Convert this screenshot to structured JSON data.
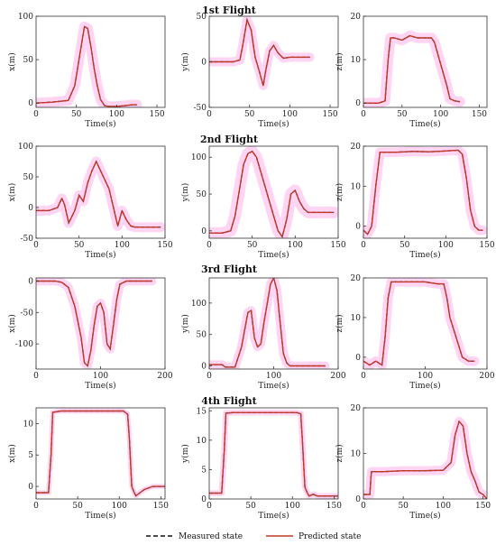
{
  "flight_titles": [
    "1st Flight",
    "2nd Flight",
    "3rd Flight",
    "4th Flight"
  ],
  "legend": {
    "measured": "Measured state",
    "predicted": "Predicted state"
  },
  "colors": {
    "measured": "#111111",
    "predicted": "#c0392b",
    "band": "#ff88dd",
    "axes": "#333333"
  },
  "chart_data": [
    {
      "type": "line",
      "title": "1st Flight",
      "xlabel": "Time(s)",
      "ylabel": "x(m)",
      "xlim": [
        0,
        160
      ],
      "ylim": [
        -5,
        100
      ],
      "xticks": [
        0,
        50,
        100,
        150
      ],
      "yticks": [
        0,
        50,
        100
      ],
      "band": 6,
      "series": [
        {
          "name": "Measured state",
          "x": [
            0,
            20,
            40,
            48,
            55,
            60,
            64,
            68,
            72,
            76,
            80,
            85,
            90,
            100,
            110,
            120,
            125
          ],
          "y": [
            0,
            1,
            3,
            20,
            60,
            88,
            86,
            65,
            40,
            20,
            4,
            -3,
            -4,
            -4,
            -3,
            -2,
            -2
          ]
        }
      ]
    },
    {
      "type": "line",
      "xlabel": "Time(s)",
      "ylabel": "y(m)",
      "xlim": [
        0,
        160
      ],
      "ylim": [
        -50,
        50
      ],
      "xticks": [
        0,
        50,
        100,
        150
      ],
      "yticks": [
        -50,
        0,
        50
      ],
      "band": 5,
      "series": [
        {
          "name": "Measured state",
          "x": [
            0,
            20,
            30,
            38,
            42,
            47,
            52,
            57,
            62,
            67,
            70,
            75,
            80,
            85,
            92,
            100,
            110,
            125
          ],
          "y": [
            0,
            0,
            0,
            2,
            20,
            46,
            35,
            5,
            -10,
            -26,
            -10,
            12,
            18,
            10,
            4,
            5,
            5,
            5
          ]
        }
      ]
    },
    {
      "type": "line",
      "xlabel": "Time(s)",
      "ylabel": "z(m)",
      "xlim": [
        0,
        160
      ],
      "ylim": [
        -1,
        20
      ],
      "xticks": [
        0,
        50,
        100,
        150
      ],
      "yticks": [
        0,
        10,
        20
      ],
      "band": 1.2,
      "series": [
        {
          "name": "Measured state",
          "x": [
            0,
            10,
            20,
            28,
            32,
            35,
            40,
            50,
            60,
            70,
            80,
            88,
            92,
            100,
            108,
            112,
            118,
            125
          ],
          "y": [
            0,
            0,
            0,
            0.5,
            10,
            15,
            15,
            14.5,
            15.5,
            15,
            15,
            15,
            14,
            9,
            4,
            1,
            0.5,
            0.3
          ]
        }
      ]
    },
    {
      "type": "line",
      "title": "2nd Flight",
      "xlabel": "Time(s)",
      "ylabel": "x(m)",
      "xlim": [
        0,
        150
      ],
      "ylim": [
        -50,
        100
      ],
      "xticks": [
        0,
        50,
        100,
        150
      ],
      "yticks": [
        -50,
        0,
        50,
        100
      ],
      "band": 8,
      "series": [
        {
          "name": "Measured state",
          "x": [
            0,
            15,
            25,
            30,
            33,
            38,
            45,
            50,
            55,
            60,
            65,
            70,
            75,
            80,
            85,
            90,
            95,
            100,
            105,
            110,
            115,
            120,
            130,
            145
          ],
          "y": [
            -5,
            -5,
            0,
            15,
            5,
            -25,
            -5,
            20,
            10,
            40,
            60,
            75,
            60,
            45,
            30,
            0,
            -30,
            -5,
            -20,
            -30,
            -32,
            -32,
            -32,
            -32
          ]
        }
      ]
    },
    {
      "type": "line",
      "xlabel": "Time(s)",
      "ylabel": "y(m)",
      "xlim": [
        0,
        150
      ],
      "ylim": [
        -10,
        115
      ],
      "xticks": [
        0,
        50,
        100,
        150
      ],
      "yticks": [
        0,
        50,
        100
      ],
      "band": 8,
      "series": [
        {
          "name": "Measured state",
          "x": [
            0,
            15,
            25,
            30,
            35,
            40,
            45,
            50,
            55,
            60,
            65,
            70,
            75,
            80,
            85,
            90,
            95,
            100,
            105,
            110,
            115,
            130,
            145
          ],
          "y": [
            -3,
            -3,
            0,
            20,
            55,
            90,
            105,
            108,
            100,
            80,
            60,
            40,
            20,
            0,
            -8,
            15,
            50,
            55,
            40,
            30,
            25,
            25,
            25
          ]
        }
      ]
    },
    {
      "type": "line",
      "xlabel": "Time(s)",
      "ylabel": "z(m)",
      "xlim": [
        0,
        150
      ],
      "ylim": [
        -3,
        20
      ],
      "xticks": [
        0,
        50,
        100,
        150
      ],
      "yticks": [
        0,
        10,
        20
      ],
      "band": 1.2,
      "series": [
        {
          "name": "Measured state",
          "x": [
            0,
            5,
            10,
            15,
            20,
            25,
            40,
            60,
            80,
            100,
            115,
            120,
            125,
            130,
            135,
            140,
            145
          ],
          "y": [
            -1,
            -2,
            0,
            10,
            18.5,
            18.5,
            18.5,
            18.7,
            18.6,
            18.8,
            19,
            18,
            12,
            4,
            0,
            -1,
            -1
          ]
        }
      ]
    },
    {
      "type": "line",
      "title": "3rd Flight",
      "xlabel": "Time(s)",
      "ylabel": "x(m)",
      "xlim": [
        0,
        200
      ],
      "ylim": [
        -140,
        5
      ],
      "xticks": [
        0,
        100,
        200
      ],
      "yticks": [
        -100,
        -50,
        0
      ],
      "band": 7,
      "series": [
        {
          "name": "Measured state",
          "x": [
            0,
            20,
            30,
            40,
            50,
            60,
            70,
            75,
            80,
            85,
            90,
            95,
            100,
            105,
            110,
            115,
            120,
            125,
            130,
            140,
            160,
            180
          ],
          "y": [
            0,
            0,
            0,
            -2,
            -10,
            -40,
            -90,
            -130,
            -135,
            -110,
            -70,
            -40,
            -35,
            -50,
            -100,
            -108,
            -70,
            -30,
            -5,
            0,
            0,
            0
          ]
        }
      ]
    },
    {
      "type": "line",
      "xlabel": "Time(s)",
      "ylabel": "y(m)",
      "xlim": [
        0,
        200
      ],
      "ylim": [
        -5,
        140
      ],
      "xticks": [
        0,
        100,
        200
      ],
      "yticks": [
        0,
        50,
        100
      ],
      "band": 7,
      "series": [
        {
          "name": "Measured state",
          "x": [
            0,
            20,
            25,
            40,
            50,
            60,
            65,
            70,
            75,
            80,
            85,
            90,
            95,
            100,
            105,
            110,
            115,
            120,
            125,
            140,
            160,
            180
          ],
          "y": [
            2,
            2,
            -2,
            -2,
            30,
            85,
            88,
            45,
            30,
            35,
            70,
            100,
            130,
            140,
            120,
            70,
            20,
            5,
            0,
            0,
            0,
            0
          ]
        }
      ]
    },
    {
      "type": "line",
      "xlabel": "Time(s)",
      "ylabel": "z(m)",
      "xlim": [
        0,
        200
      ],
      "ylim": [
        -3,
        20
      ],
      "xticks": [
        0,
        100,
        200
      ],
      "yticks": [
        0,
        10,
        20
      ],
      "band": 1.2,
      "series": [
        {
          "name": "Measured state",
          "x": [
            0,
            10,
            20,
            30,
            35,
            40,
            45,
            50,
            60,
            80,
            100,
            120,
            130,
            135,
            140,
            150,
            160,
            170,
            180
          ],
          "y": [
            -1,
            -2,
            -1,
            -2,
            5,
            15,
            19,
            19,
            19,
            19,
            19,
            18.5,
            18.5,
            15,
            10,
            5,
            0,
            -1,
            -1
          ]
        }
      ]
    },
    {
      "type": "line",
      "title": "4th Flight",
      "xlabel": "Time(s)",
      "ylabel": "x(m)",
      "xlim": [
        0,
        155
      ],
      "ylim": [
        -2,
        12.5
      ],
      "xticks": [
        0,
        50,
        100,
        150
      ],
      "yticks": [
        0,
        5,
        10
      ],
      "band": 0.4,
      "series": [
        {
          "name": "Measured state",
          "x": [
            0,
            10,
            15,
            18,
            20,
            30,
            50,
            70,
            90,
            105,
            110,
            112,
            115,
            118,
            120,
            125,
            130,
            140,
            150,
            155
          ],
          "y": [
            -1,
            -1,
            -1,
            5,
            11.8,
            12,
            12,
            12,
            12,
            12,
            11.5,
            8,
            0,
            -1,
            -1.5,
            -1,
            -0.5,
            0,
            0,
            0
          ]
        }
      ]
    },
    {
      "type": "line",
      "xlabel": "Time(s)",
      "ylabel": "y(m)",
      "xlim": [
        0,
        155
      ],
      "ylim": [
        0,
        15.5
      ],
      "xticks": [
        0,
        50,
        100,
        150
      ],
      "yticks": [
        0,
        5,
        10,
        15
      ],
      "band": 0.5,
      "series": [
        {
          "name": "Measured state",
          "x": [
            0,
            10,
            15,
            18,
            20,
            30,
            50,
            70,
            90,
            105,
            110,
            112,
            115,
            118,
            120,
            125,
            130,
            140,
            150,
            155
          ],
          "y": [
            1,
            1,
            1,
            8,
            14.6,
            14.7,
            14.7,
            14.7,
            14.7,
            14.7,
            14.5,
            10,
            2,
            1,
            0.5,
            0.8,
            0.5,
            0.5,
            0.5,
            0.5
          ]
        }
      ]
    },
    {
      "type": "line",
      "xlabel": "Time(s)",
      "ylabel": "z(m)",
      "xlim": [
        0,
        155
      ],
      "ylim": [
        0,
        20
      ],
      "xticks": [
        0,
        50,
        100,
        150
      ],
      "yticks": [
        0,
        10,
        20
      ],
      "band": 1,
      "series": [
        {
          "name": "Measured state",
          "x": [
            0,
            5,
            8,
            10,
            15,
            25,
            50,
            75,
            100,
            110,
            115,
            120,
            125,
            130,
            135,
            140,
            145,
            150,
            155
          ],
          "y": [
            1,
            1,
            1,
            6,
            6,
            6,
            6.2,
            6.2,
            6.3,
            8,
            14,
            17,
            16,
            10,
            6,
            4,
            1.5,
            1,
            0
          ]
        }
      ]
    }
  ]
}
